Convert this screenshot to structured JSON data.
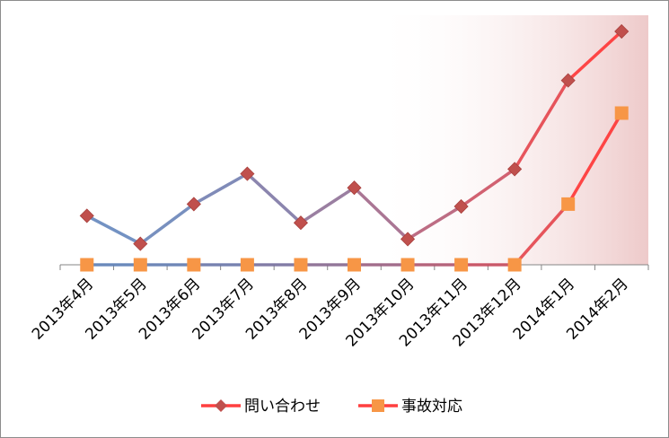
{
  "chart_data": {
    "type": "line",
    "title": "",
    "xlabel": "",
    "ylabel": "",
    "categories": [
      "2013年4月",
      "2013年5月",
      "2013年6月",
      "2013年7月",
      "2013年8月",
      "2013年9月",
      "2013年10月",
      "2013年11月",
      "2013年12月",
      "2014年1月",
      "2014年2月"
    ],
    "ylim": [
      0,
      10
    ],
    "y_axis_visible": false,
    "grid": false,
    "legend_position": "bottom",
    "series": [
      {
        "name": "問い合わせ",
        "values": [
          2.1,
          0.9,
          2.6,
          3.9,
          1.8,
          3.3,
          1.1,
          2.5,
          4.1,
          7.9,
          10.0
        ],
        "marker": "diamond",
        "line_color_start": "#5b7fb8",
        "line_color_end": "#ff2a2a",
        "marker_color": "#c0504d"
      },
      {
        "name": "事故対応",
        "values": [
          0,
          0,
          0,
          0,
          0,
          0,
          0,
          0,
          0,
          2.6,
          6.5
        ],
        "marker": "square",
        "line_color_start": "#5b7fb8",
        "line_color_end": "#ff2a2a",
        "marker_color": "#f79646"
      }
    ],
    "highlight_band": {
      "from_category": "2013年10月",
      "to_category": "2014年2月",
      "color": "#e8b8b8"
    }
  }
}
